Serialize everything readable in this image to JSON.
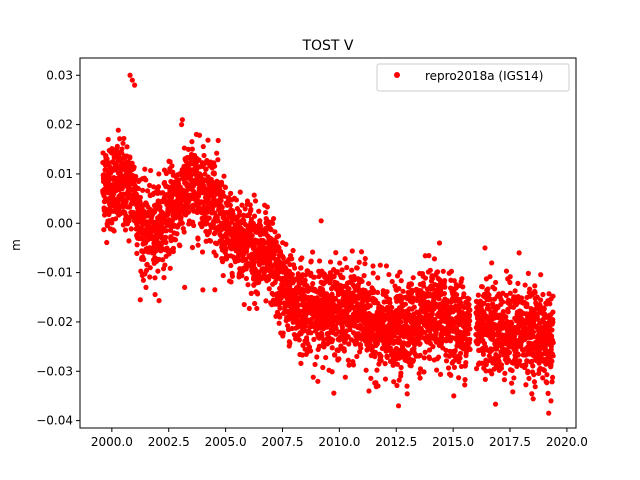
{
  "chart_data": {
    "type": "scatter",
    "title": "TOST V",
    "xlabel": "",
    "ylabel": "m",
    "xlim": [
      1998.6,
      2020.4
    ],
    "ylim": [
      -0.0415,
      0.0335
    ],
    "xticks": [
      2000.0,
      2002.5,
      2005.0,
      2007.5,
      2010.0,
      2012.5,
      2015.0,
      2017.5,
      2020.0
    ],
    "xtick_labels": [
      "2000.0",
      "2002.5",
      "2005.0",
      "2007.5",
      "2010.0",
      "2012.5",
      "2015.0",
      "2017.5",
      "2020.0"
    ],
    "yticks": [
      0.03,
      0.02,
      0.01,
      0.0,
      -0.01,
      -0.02,
      -0.03,
      -0.04
    ],
    "ytick_labels": [
      "0.03",
      "0.02",
      "0.01",
      "0.00",
      "−0.01",
      "−0.02",
      "−0.03",
      "−0.04"
    ],
    "grid": false,
    "legend": {
      "position": "top-right"
    },
    "series": [
      {
        "name": "repro2018a (IGS14)",
        "color": "#ff0000",
        "marker": "circle",
        "x_range": [
          1999.6,
          2019.4
        ],
        "trend": [
          [
            1999.6,
            0.008
          ],
          [
            2000.5,
            0.0075
          ],
          [
            2001.0,
            0.006
          ],
          [
            2001.3,
            -0.001
          ],
          [
            2001.8,
            -0.002
          ],
          [
            2002.5,
            0.002
          ],
          [
            2003.0,
            0.005
          ],
          [
            2003.5,
            0.007
          ],
          [
            2004.0,
            0.007
          ],
          [
            2004.5,
            0.005
          ],
          [
            2005.0,
            -0.002
          ],
          [
            2005.5,
            -0.003
          ],
          [
            2006.0,
            -0.004
          ],
          [
            2006.5,
            -0.006
          ],
          [
            2007.0,
            -0.008
          ],
          [
            2007.5,
            -0.013
          ],
          [
            2008.0,
            -0.016
          ],
          [
            2008.5,
            -0.017
          ],
          [
            2009.0,
            -0.018
          ],
          [
            2009.5,
            -0.017
          ],
          [
            2010.0,
            -0.018
          ],
          [
            2010.5,
            -0.018
          ],
          [
            2011.0,
            -0.018
          ],
          [
            2011.5,
            -0.021
          ],
          [
            2012.0,
            -0.022
          ],
          [
            2012.5,
            -0.022
          ],
          [
            2013.0,
            -0.021
          ],
          [
            2013.5,
            -0.02
          ],
          [
            2014.0,
            -0.019
          ],
          [
            2014.5,
            -0.019
          ],
          [
            2015.0,
            -0.02
          ],
          [
            2015.5,
            -0.021
          ],
          [
            2016.0,
            -0.021
          ],
          [
            2016.5,
            -0.02
          ],
          [
            2017.0,
            -0.022
          ],
          [
            2017.5,
            -0.022
          ],
          [
            2018.0,
            -0.022
          ],
          [
            2018.5,
            -0.022
          ],
          [
            2019.0,
            -0.023
          ],
          [
            2019.4,
            -0.024
          ]
        ],
        "scatter_std": 0.0045,
        "n_points": 4200,
        "extremes": [
          [
            2000.8,
            0.03
          ],
          [
            2000.9,
            0.029
          ],
          [
            2001.0,
            0.028
          ],
          [
            2003.1,
            0.021
          ],
          [
            2009.2,
            0.0005
          ],
          [
            2012.6,
            -0.037
          ],
          [
            2019.2,
            -0.0385
          ],
          [
            2019.3,
            -0.036
          ],
          [
            2014.4,
            -0.004
          ],
          [
            2016.4,
            -0.005
          ],
          [
            2017.9,
            -0.006
          ],
          [
            2001.5,
            -0.013
          ],
          [
            2003.2,
            -0.013
          ],
          [
            2004.0,
            -0.0135
          ],
          [
            2007.8,
            -0.024
          ],
          [
            2011.3,
            -0.034
          ]
        ]
      }
    ]
  }
}
